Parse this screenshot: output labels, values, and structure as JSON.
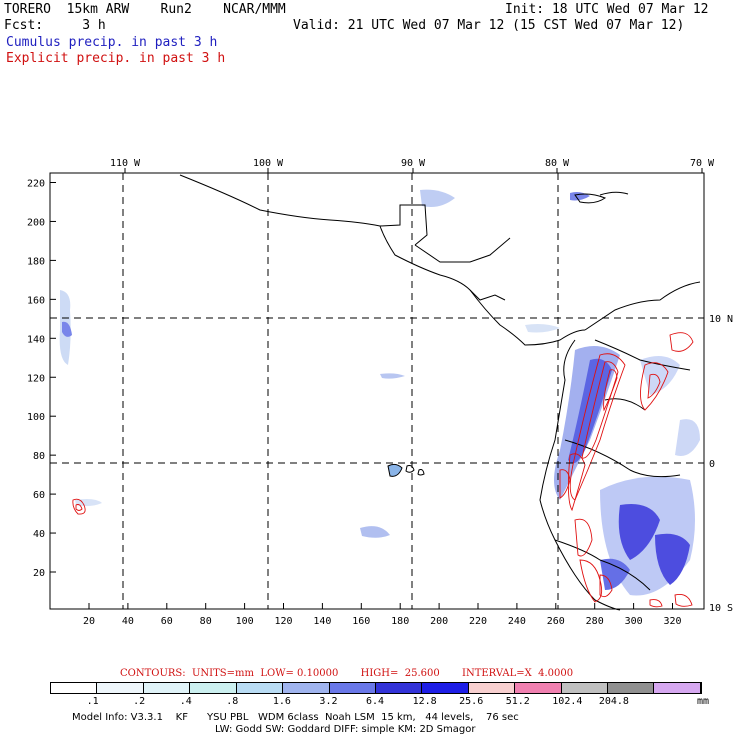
{
  "header": {
    "line1_left": "TORERO  15km ARW    Run2    NCAR/MMM",
    "line1_right": "Init: 18 UTC Wed 07 Mar 12",
    "line2_left": "Fcst:     3 h",
    "line2_right": "Valid: 21 UTC Wed 07 Mar 12 (15 CST Wed 07 Mar 12)",
    "legend_cumulus": "Cumulus precip. in past 3 h",
    "legend_explicit": "Explicit precip. in past 3 h"
  },
  "map": {
    "top_lon_labels": [
      "110 W",
      "100 W",
      "90 W",
      "80 W",
      "70 W"
    ],
    "right_lat_labels": [
      "10 N",
      "0",
      "10 S"
    ],
    "x_ticks": [
      "20",
      "40",
      "60",
      "80",
      "100",
      "120",
      "140",
      "160",
      "180",
      "200",
      "220",
      "240",
      "260",
      "280",
      "300",
      "320"
    ],
    "y_ticks": [
      "20",
      "40",
      "60",
      "80",
      "100",
      "120",
      "140",
      "160",
      "180",
      "200",
      "220"
    ]
  },
  "colorbar": {
    "colors": [
      "#ffffff",
      "#eef6fb",
      "#e0f3f8",
      "#ccf0f0",
      "#b9dcf4",
      "#a0b4ee",
      "#6a78e8",
      "#3333d8",
      "#1e1ee6",
      "#f8d0d0",
      "#f080b0",
      "#c0c0c0",
      "#909090",
      "#d6a8f0"
    ],
    "labels": [
      ".1",
      ".2",
      ".4",
      ".8",
      "1.6",
      "3.2",
      "6.4",
      "12.8",
      "25.6",
      "51.2",
      "102.4",
      "204.8"
    ],
    "unit": "mm"
  },
  "contour_note": "CONTOURS:  UNITS=mm  LOW= 0.10000       HIGH=  25.600       INTERVAL=X  4.0000",
  "footer": {
    "line1": "Model Info: V3.3.1    KF      YSU PBL   WDM 6class  Noah LSM  15 km,   44 levels,    76 sec",
    "line2": "LW: Godd SW: Goddard DIFF: simple KM: 2D Smagor"
  }
}
